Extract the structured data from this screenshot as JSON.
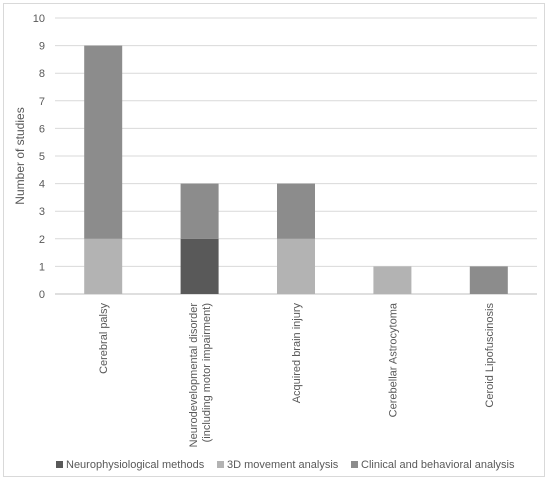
{
  "chart_data": {
    "type": "bar",
    "stacked": true,
    "title": "",
    "ylabel": "Number of studies",
    "xlabel": "",
    "ylim": [
      0,
      10
    ],
    "yticks": [
      0,
      1,
      2,
      3,
      4,
      5,
      6,
      7,
      8,
      9,
      10
    ],
    "grid": true,
    "legend_position": "bottom",
    "categories": [
      [
        "Cerebral palsy"
      ],
      [
        "Neurodevelopmental disorder",
        "(including motor impairment)"
      ],
      [
        "Acquired brain injury"
      ],
      [
        "Cerebellar Astrocytoma"
      ],
      [
        "Ceroid Lipofuscinosis"
      ]
    ],
    "series": [
      {
        "name": "Neurophysiological methods",
        "color": "#595959",
        "values": [
          0,
          2,
          0,
          0,
          0
        ]
      },
      {
        "name": "3D movement analysis",
        "color": "#b3b3b3",
        "values": [
          2,
          0,
          2,
          1,
          0
        ]
      },
      {
        "name": "Clinical and behavioral analysis",
        "color": "#8c8c8c",
        "values": [
          7,
          2,
          2,
          0,
          1
        ]
      }
    ]
  }
}
